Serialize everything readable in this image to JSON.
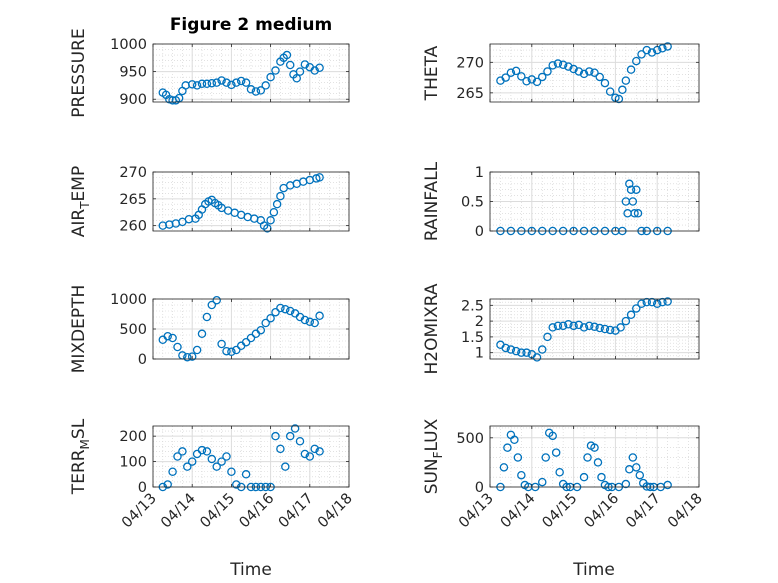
{
  "figure": {
    "title": "Figure 2 medium",
    "xlabel": "Time"
  },
  "style": {
    "marker_color": "#0072bd",
    "axis_color": "#262626",
    "grid_color": "#dcdcdc"
  },
  "chart_data": [
    {
      "type": "scatter",
      "ylabel": "PRESSURE",
      "ylim": [
        895,
        1000
      ],
      "yticks": [
        900,
        950,
        1000
      ],
      "xlim": [
        "04/13",
        "04/18"
      ],
      "xtick_labels": [
        "04/13",
        "04/14",
        "04/15",
        "04/16",
        "04/17",
        "04/18"
      ],
      "show_x_tick_labels": false,
      "grid": true,
      "x": [
        "04/13 06:00",
        "04/13 08:00",
        "04/13 10:00",
        "04/13 12:00",
        "04/13 14:00",
        "04/13 16:00",
        "04/13 18:00",
        "04/13 20:00",
        "04/14 00:00",
        "04/14 03:00",
        "04/14 06:00",
        "04/14 09:00",
        "04/14 12:00",
        "04/14 15:00",
        "04/14 18:00",
        "04/14 21:00",
        "04/15 00:00",
        "04/15 03:00",
        "04/15 06:00",
        "04/15 09:00",
        "04/15 12:00",
        "04/15 15:00",
        "04/15 18:00",
        "04/15 21:00",
        "04/16 00:00",
        "04/16 03:00",
        "04/16 06:00",
        "04/16 08:00",
        "04/16 10:00",
        "04/16 12:00",
        "04/16 14:00",
        "04/16 16:00",
        "04/16 18:00",
        "04/16 21:00",
        "04/17 00:00",
        "04/17 03:00",
        "04/17 06:00"
      ],
      "y": [
        912,
        908,
        900,
        898,
        898,
        902,
        915,
        925,
        927,
        925,
        928,
        928,
        929,
        930,
        934,
        930,
        926,
        930,
        933,
        930,
        918,
        914,
        916,
        925,
        940,
        952,
        968,
        975,
        980,
        962,
        945,
        938,
        950,
        963,
        958,
        952,
        957
      ]
    },
    {
      "type": "scatter",
      "ylabel": "THETA",
      "ylim": [
        263.5,
        273
      ],
      "yticks": [
        265,
        270
      ],
      "xlim": [
        "04/13",
        "04/18"
      ],
      "xtick_labels": [
        "04/13",
        "04/14",
        "04/15",
        "04/16",
        "04/17",
        "04/18"
      ],
      "show_x_tick_labels": false,
      "grid": true,
      "x": [
        "04/13 06:00",
        "04/13 09:00",
        "04/13 12:00",
        "04/13 15:00",
        "04/13 18:00",
        "04/13 21:00",
        "04/14 00:00",
        "04/14 03:00",
        "04/14 06:00",
        "04/14 09:00",
        "04/14 12:00",
        "04/14 15:00",
        "04/14 18:00",
        "04/14 21:00",
        "04/15 00:00",
        "04/15 03:00",
        "04/15 06:00",
        "04/15 09:00",
        "04/15 12:00",
        "04/15 15:00",
        "04/15 18:00",
        "04/15 21:00",
        "04/16 00:00",
        "04/16 02:00",
        "04/16 04:00",
        "04/16 06:00",
        "04/16 09:00",
        "04/16 12:00",
        "04/16 15:00",
        "04/16 18:00",
        "04/16 21:00",
        "04/17 00:00",
        "04/17 03:00",
        "04/17 06:00"
      ],
      "y": [
        267.0,
        267.5,
        268.3,
        268.6,
        267.7,
        266.9,
        267.2,
        266.8,
        267.6,
        268.5,
        269.5,
        269.8,
        269.6,
        269.3,
        268.9,
        268.5,
        268.1,
        268.5,
        268.3,
        267.6,
        266.6,
        265.2,
        264.2,
        264.0,
        265.5,
        267.0,
        268.8,
        270.2,
        271.3,
        272.0,
        271.6,
        272.0,
        272.3,
        272.6
      ]
    },
    {
      "type": "scatter",
      "ylabel": "AIR_TEMP",
      "ylim": [
        259,
        270
      ],
      "yticks": [
        260,
        265,
        270
      ],
      "xlim": [
        "04/13",
        "04/18"
      ],
      "xtick_labels": [
        "04/13",
        "04/14",
        "04/15",
        "04/16",
        "04/17",
        "04/18"
      ],
      "show_x_tick_labels": false,
      "grid": true,
      "x": [
        "04/13 06:00",
        "04/13 10:00",
        "04/13 14:00",
        "04/13 18:00",
        "04/13 22:00",
        "04/14 02:00",
        "04/14 04:00",
        "04/14 06:00",
        "04/14 08:00",
        "04/14 10:00",
        "04/14 12:00",
        "04/14 14:00",
        "04/14 16:00",
        "04/14 18:00",
        "04/14 22:00",
        "04/15 02:00",
        "04/15 06:00",
        "04/15 10:00",
        "04/15 14:00",
        "04/15 18:00",
        "04/15 20:00",
        "04/15 22:00",
        "04/16 00:00",
        "04/16 02:00",
        "04/16 04:00",
        "04/16 06:00",
        "04/16 08:00",
        "04/16 12:00",
        "04/16 16:00",
        "04/16 20:00",
        "04/17 00:00",
        "04/17 04:00",
        "04/17 06:00"
      ],
      "y": [
        260.0,
        260.2,
        260.4,
        260.7,
        261.2,
        261.3,
        262.0,
        263.0,
        264.0,
        264.5,
        264.8,
        264.2,
        263.8,
        263.3,
        262.8,
        262.4,
        262.0,
        261.6,
        261.3,
        261.0,
        260.0,
        259.5,
        261.0,
        262.5,
        264.0,
        265.5,
        267.0,
        267.5,
        267.8,
        268.2,
        268.5,
        268.8,
        269.0
      ]
    },
    {
      "type": "scatter",
      "ylabel": "RAINFALL",
      "ylim": [
        0,
        1
      ],
      "yticks": [
        0,
        0.5,
        1
      ],
      "xlim": [
        "04/13",
        "04/18"
      ],
      "xtick_labels": [
        "04/13",
        "04/14",
        "04/15",
        "04/16",
        "04/17",
        "04/18"
      ],
      "show_x_tick_labels": false,
      "grid": true,
      "x": [
        "04/13 06:00",
        "04/13 12:00",
        "04/13 18:00",
        "04/14 00:00",
        "04/14 06:00",
        "04/14 12:00",
        "04/14 18:00",
        "04/15 00:00",
        "04/15 06:00",
        "04/15 12:00",
        "04/15 18:00",
        "04/16 00:00",
        "04/16 04:00",
        "04/16 06:00",
        "04/16 07:00",
        "04/16 08:00",
        "04/16 09:00",
        "04/16 10:00",
        "04/16 11:00",
        "04/16 12:00",
        "04/16 13:00",
        "04/16 15:00",
        "04/16 18:00",
        "04/17 00:00",
        "04/17 06:00"
      ],
      "y": [
        0,
        0,
        0,
        0,
        0,
        0,
        0,
        0,
        0,
        0,
        0,
        0,
        0,
        0.5,
        0.3,
        0.8,
        0.7,
        0.5,
        0.3,
        0.7,
        0.3,
        0,
        0,
        0,
        0
      ]
    },
    {
      "type": "scatter",
      "ylabel": "MIXDEPTH",
      "ylim": [
        0,
        1000
      ],
      "yticks": [
        0,
        500,
        1000
      ],
      "xlim": [
        "04/13",
        "04/18"
      ],
      "xtick_labels": [
        "04/13",
        "04/14",
        "04/15",
        "04/16",
        "04/17",
        "04/18"
      ],
      "show_x_tick_labels": false,
      "grid": true,
      "x": [
        "04/13 06:00",
        "04/13 09:00",
        "04/13 12:00",
        "04/13 15:00",
        "04/13 18:00",
        "04/13 21:00",
        "04/14 00:00",
        "04/14 03:00",
        "04/14 06:00",
        "04/14 09:00",
        "04/14 12:00",
        "04/14 15:00",
        "04/14 18:00",
        "04/14 21:00",
        "04/15 00:00",
        "04/15 03:00",
        "04/15 06:00",
        "04/15 09:00",
        "04/15 12:00",
        "04/15 15:00",
        "04/15 18:00",
        "04/15 21:00",
        "04/16 00:00",
        "04/16 03:00",
        "04/16 06:00",
        "04/16 09:00",
        "04/16 12:00",
        "04/16 15:00",
        "04/16 18:00",
        "04/16 21:00",
        "04/17 00:00",
        "04/17 03:00",
        "04/17 06:00"
      ],
      "y": [
        320,
        380,
        350,
        200,
        60,
        30,
        40,
        150,
        420,
        700,
        900,
        980,
        250,
        130,
        120,
        150,
        220,
        280,
        350,
        420,
        480,
        600,
        680,
        780,
        850,
        830,
        800,
        760,
        700,
        650,
        620,
        600,
        720
      ]
    },
    {
      "type": "scatter",
      "ylabel": "H2OMIXRA",
      "ylim": [
        0.8,
        2.7
      ],
      "yticks": [
        1,
        1.5,
        2,
        2.5
      ],
      "xlim": [
        "04/13",
        "04/18"
      ],
      "xtick_labels": [
        "04/13",
        "04/14",
        "04/15",
        "04/16",
        "04/17",
        "04/18"
      ],
      "show_x_tick_labels": false,
      "grid": true,
      "x": [
        "04/13 06:00",
        "04/13 09:00",
        "04/13 12:00",
        "04/13 15:00",
        "04/13 18:00",
        "04/13 21:00",
        "04/14 00:00",
        "04/14 03:00",
        "04/14 06:00",
        "04/14 09:00",
        "04/14 12:00",
        "04/14 15:00",
        "04/14 18:00",
        "04/14 21:00",
        "04/15 00:00",
        "04/15 03:00",
        "04/15 06:00",
        "04/15 09:00",
        "04/15 12:00",
        "04/15 15:00",
        "04/15 18:00",
        "04/15 21:00",
        "04/16 00:00",
        "04/16 03:00",
        "04/16 06:00",
        "04/16 09:00",
        "04/16 12:00",
        "04/16 15:00",
        "04/16 18:00",
        "04/16 21:00",
        "04/17 00:00",
        "04/17 03:00",
        "04/17 06:00"
      ],
      "y": [
        1.25,
        1.15,
        1.1,
        1.05,
        1.0,
        1.0,
        0.95,
        0.85,
        1.1,
        1.5,
        1.8,
        1.85,
        1.85,
        1.9,
        1.85,
        1.88,
        1.8,
        1.85,
        1.82,
        1.78,
        1.75,
        1.72,
        1.7,
        1.8,
        2.0,
        2.2,
        2.4,
        2.55,
        2.6,
        2.6,
        2.55,
        2.6,
        2.62
      ]
    },
    {
      "type": "scatter",
      "ylabel": "TERR_MSL",
      "ylim": [
        0,
        240
      ],
      "yticks": [
        0,
        100,
        200
      ],
      "xlim": [
        "04/13",
        "04/18"
      ],
      "xtick_labels": [
        "04/13",
        "04/14",
        "04/15",
        "04/16",
        "04/17",
        "04/18"
      ],
      "show_x_tick_labels": true,
      "grid": true,
      "x": [
        "04/13 06:00",
        "04/13 09:00",
        "04/13 12:00",
        "04/13 15:00",
        "04/13 18:00",
        "04/13 21:00",
        "04/14 00:00",
        "04/14 03:00",
        "04/14 06:00",
        "04/14 09:00",
        "04/14 12:00",
        "04/14 15:00",
        "04/14 18:00",
        "04/14 21:00",
        "04/15 00:00",
        "04/15 03:00",
        "04/15 06:00",
        "04/15 09:00",
        "04/15 12:00",
        "04/15 15:00",
        "04/15 18:00",
        "04/15 21:00",
        "04/16 00:00",
        "04/16 03:00",
        "04/16 06:00",
        "04/16 09:00",
        "04/16 12:00",
        "04/16 15:00",
        "04/16 18:00",
        "04/16 21:00",
        "04/17 00:00",
        "04/17 03:00",
        "04/17 06:00"
      ],
      "y": [
        0,
        10,
        60,
        120,
        140,
        80,
        100,
        130,
        145,
        140,
        110,
        80,
        100,
        120,
        60,
        10,
        0,
        50,
        0,
        0,
        0,
        0,
        0,
        200,
        150,
        80,
        200,
        230,
        180,
        130,
        120,
        150,
        140
      ]
    },
    {
      "type": "scatter",
      "ylabel": "SUN_FLUX",
      "ylim": [
        0,
        620
      ],
      "yticks": [
        0,
        500
      ],
      "xlim": [
        "04/13",
        "04/18"
      ],
      "xtick_labels": [
        "04/13",
        "04/14",
        "04/15",
        "04/16",
        "04/17",
        "04/18"
      ],
      "show_x_tick_labels": true,
      "grid": true,
      "x": [
        "04/13 06:00",
        "04/13 08:00",
        "04/13 10:00",
        "04/13 12:00",
        "04/13 14:00",
        "04/13 16:00",
        "04/13 18:00",
        "04/13 20:00",
        "04/13 22:00",
        "04/14 02:00",
        "04/14 06:00",
        "04/14 08:00",
        "04/14 10:00",
        "04/14 12:00",
        "04/14 14:00",
        "04/14 16:00",
        "04/14 18:00",
        "04/14 20:00",
        "04/14 22:00",
        "04/15 02:00",
        "04/15 06:00",
        "04/15 08:00",
        "04/15 10:00",
        "04/15 12:00",
        "04/15 14:00",
        "04/15 16:00",
        "04/15 18:00",
        "04/15 20:00",
        "04/15 22:00",
        "04/16 02:00",
        "04/16 06:00",
        "04/16 08:00",
        "04/16 10:00",
        "04/16 12:00",
        "04/16 14:00",
        "04/16 16:00",
        "04/16 18:00",
        "04/16 20:00",
        "04/16 22:00",
        "04/17 02:00",
        "04/17 06:00"
      ],
      "y": [
        0,
        200,
        400,
        530,
        480,
        300,
        120,
        20,
        0,
        0,
        50,
        300,
        550,
        520,
        350,
        150,
        30,
        0,
        0,
        0,
        100,
        300,
        420,
        400,
        250,
        100,
        20,
        0,
        0,
        0,
        30,
        180,
        300,
        200,
        120,
        40,
        5,
        0,
        0,
        0,
        20
      ]
    }
  ]
}
